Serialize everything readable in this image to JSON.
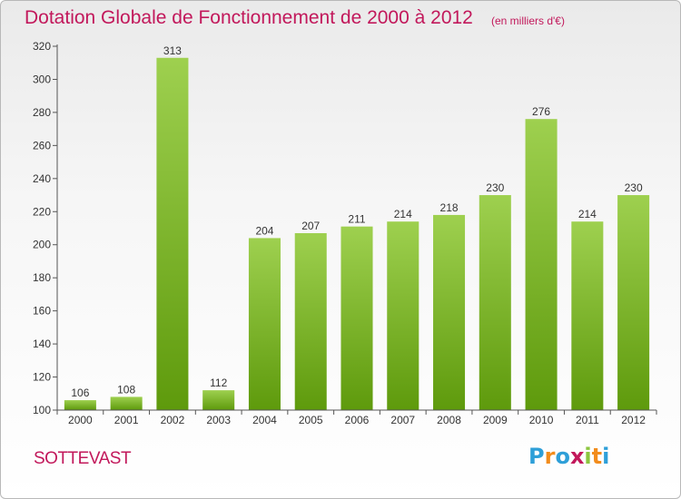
{
  "header": {
    "title": "Dotation Globale de Fonctionnement de 2000 à 2012",
    "unit": "(en milliers d'€)"
  },
  "footer": {
    "commune": "SOTTEVAST",
    "logo_letters": [
      "P",
      "r",
      "o",
      "x",
      "i",
      "t",
      "i"
    ]
  },
  "colors": {
    "bar_top": "#9ed04f",
    "bar_bottom": "#5e9a0c",
    "text_accent": "#c2185b"
  },
  "chart_data": {
    "type": "bar",
    "title": "Dotation Globale de Fonctionnement de 2000 à 2012",
    "subtitle": "(en milliers d'€)",
    "categories": [
      "2000",
      "2001",
      "2002",
      "2003",
      "2004",
      "2005",
      "2006",
      "2007",
      "2008",
      "2009",
      "2010",
      "2011",
      "2012"
    ],
    "values": [
      106,
      108,
      313,
      112,
      204,
      207,
      211,
      214,
      218,
      230,
      276,
      214,
      230
    ],
    "ylim": [
      100,
      320
    ],
    "yticks": [
      100,
      120,
      140,
      160,
      180,
      200,
      220,
      240,
      260,
      280,
      300,
      320
    ],
    "grid": false,
    "legend": "none"
  }
}
